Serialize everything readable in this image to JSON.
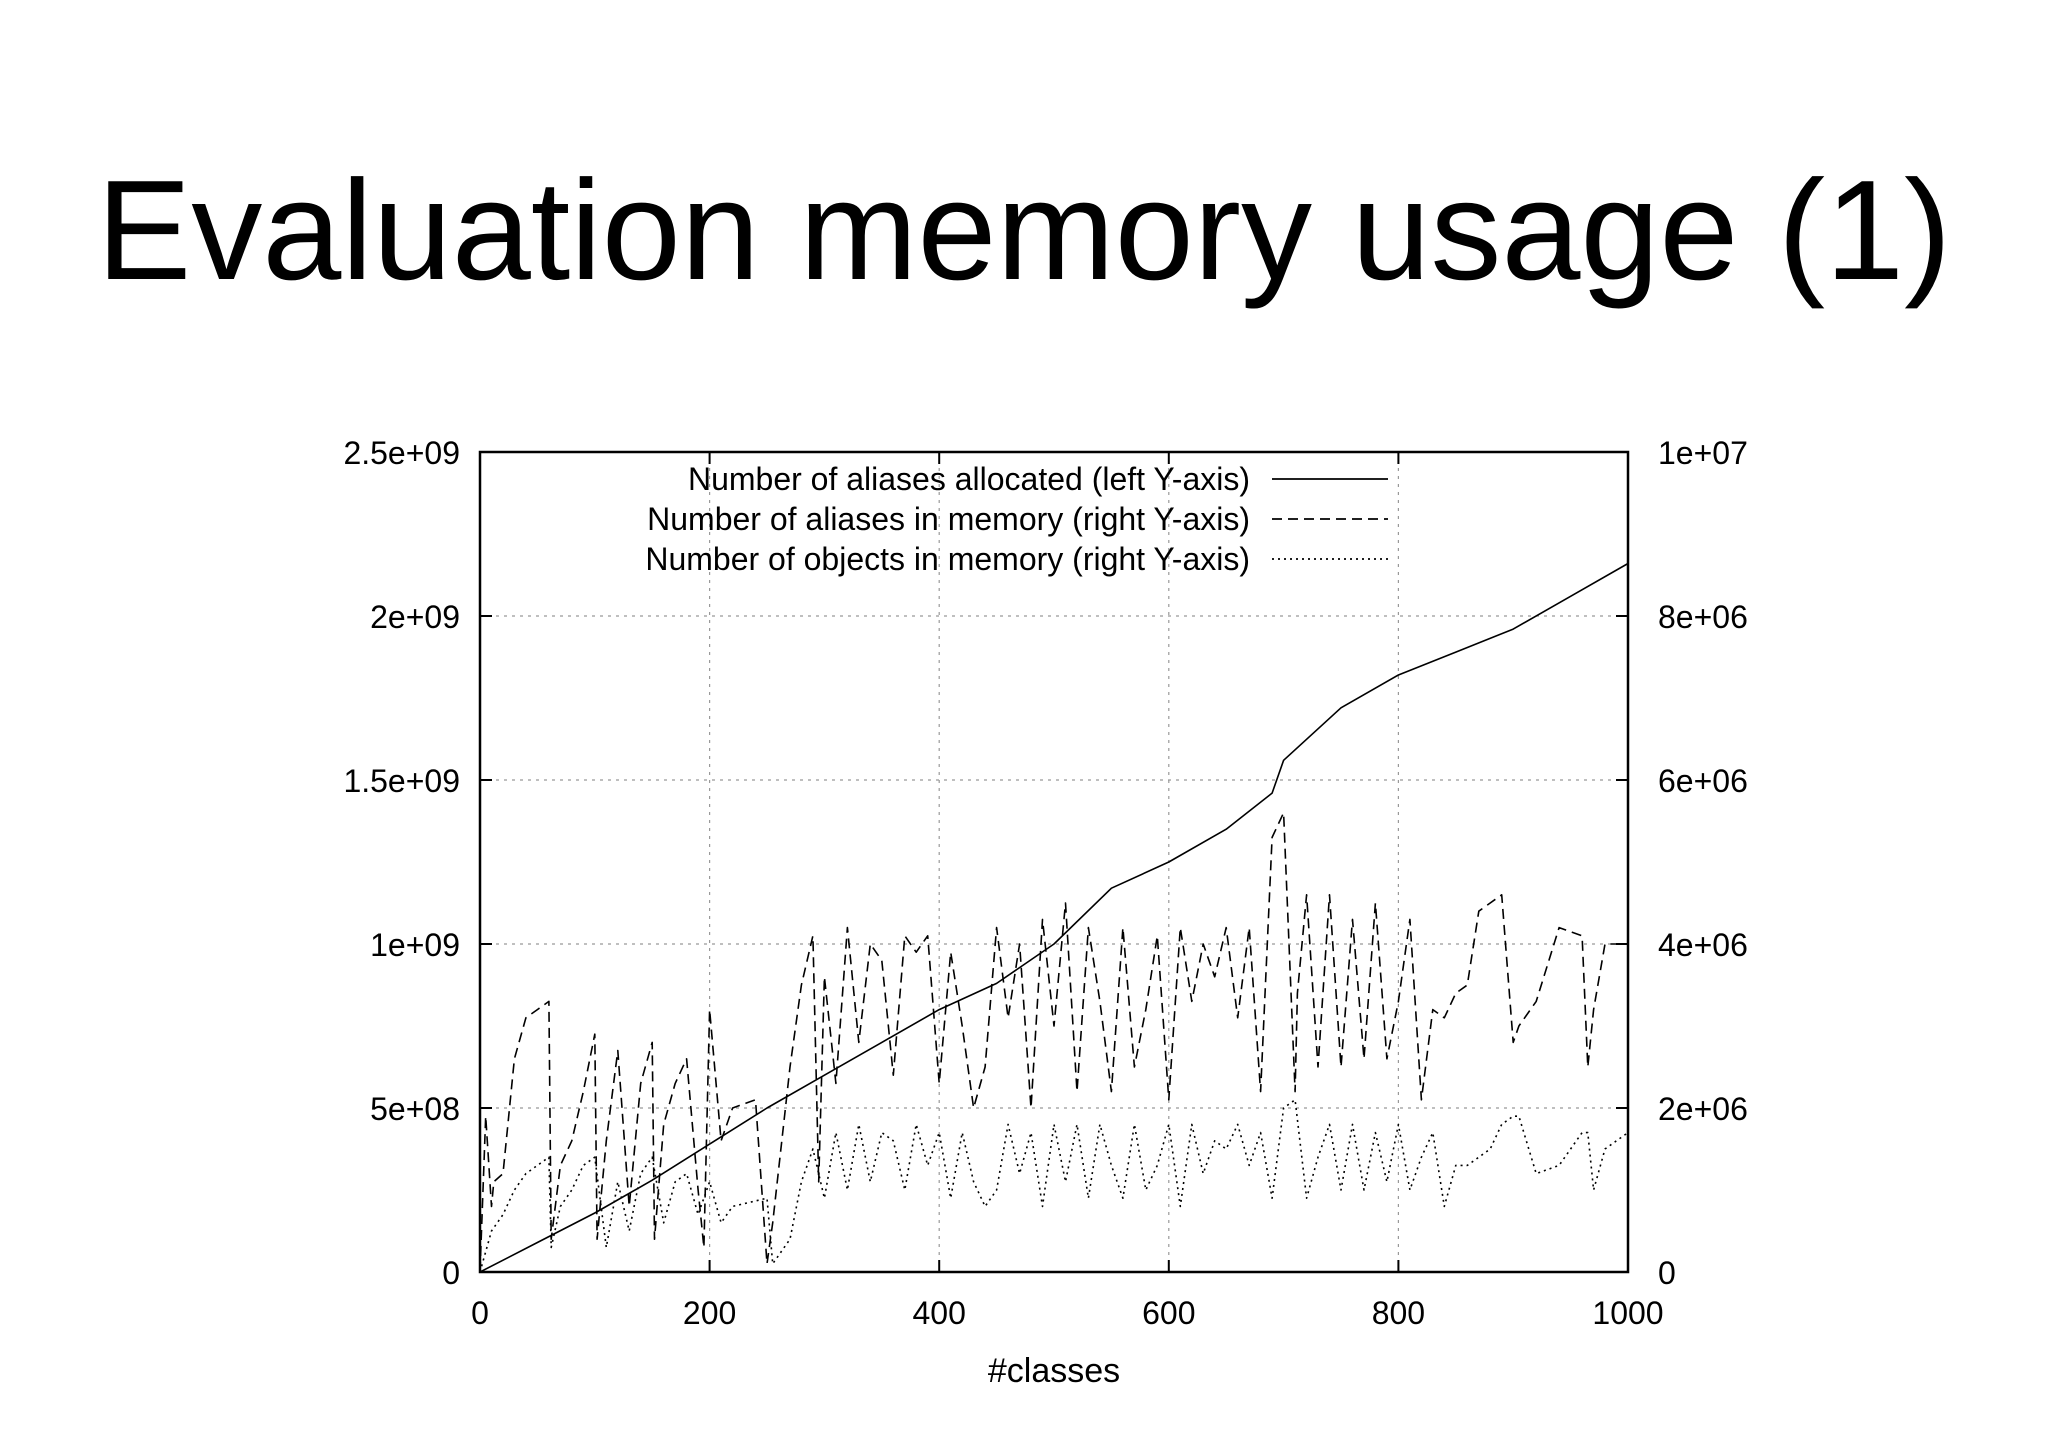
{
  "slide": {
    "title": "Evaluation memory usage (1)"
  },
  "chart_data": {
    "type": "line",
    "title": "",
    "xlabel": "#classes",
    "ylabel": "",
    "y2label": "",
    "xlim": [
      0,
      1000
    ],
    "ylim": [
      0,
      2500000000
    ],
    "y2lim": [
      0,
      10000000
    ],
    "x_ticks": [
      "0",
      "200",
      "400",
      "600",
      "800",
      "1000"
    ],
    "y_ticks": [
      "0",
      "5e+08",
      "1e+09",
      "1.5e+09",
      "2e+09",
      "2.5e+09"
    ],
    "y2_ticks": [
      "0",
      "2e+06",
      "4e+06",
      "6e+06",
      "8e+06",
      "1e+07"
    ],
    "grid": true,
    "legend_position": "top-left",
    "series": [
      {
        "name": "Number of aliases allocated (left Y-axis)",
        "axis": "left",
        "style": "solid",
        "x": [
          0,
          50,
          100,
          150,
          200,
          250,
          300,
          350,
          400,
          450,
          500,
          550,
          600,
          650,
          690,
          700,
          750,
          800,
          850,
          900,
          950,
          1000
        ],
        "y": [
          0,
          90000000,
          180000000,
          280000000,
          390000000,
          500000000,
          600000000,
          700000000,
          800000000,
          880000000,
          1000000000,
          1170000000,
          1250000000,
          1350000000,
          1460000000,
          1560000000,
          1720000000,
          1820000000,
          1890000000,
          1960000000,
          2060000000,
          2160000000
        ]
      },
      {
        "name": "Number of aliases in memory (right Y-axis)",
        "axis": "right",
        "style": "dashed",
        "x": [
          0,
          5,
          10,
          12,
          20,
          30,
          40,
          50,
          60,
          62,
          70,
          80,
          90,
          100,
          102,
          110,
          120,
          130,
          140,
          150,
          152,
          160,
          170,
          180,
          190,
          195,
          200,
          210,
          220,
          240,
          250,
          255,
          270,
          280,
          290,
          295,
          300,
          310,
          320,
          330,
          340,
          350,
          360,
          370,
          380,
          390,
          400,
          410,
          420,
          430,
          440,
          450,
          460,
          470,
          480,
          490,
          500,
          510,
          520,
          530,
          540,
          550,
          560,
          570,
          580,
          590,
          600,
          610,
          620,
          630,
          640,
          650,
          660,
          670,
          680,
          690,
          700,
          710,
          712,
          720,
          730,
          740,
          750,
          760,
          770,
          780,
          790,
          800,
          810,
          820,
          830,
          840,
          850,
          860,
          870,
          880,
          890,
          900,
          905,
          920,
          940,
          960,
          965,
          970,
          980,
          1000
        ],
        "y": [
          0,
          1900000,
          800000,
          1100000,
          1200000,
          2600000,
          3100000,
          3200000,
          3300000,
          400000,
          1300000,
          1600000,
          2200000,
          2900000,
          400000,
          1600000,
          2700000,
          800000,
          2300000,
          2800000,
          400000,
          1800000,
          2300000,
          2600000,
          1000000,
          300000,
          3200000,
          1600000,
          2000000,
          2100000,
          100000,
          600000,
          2500000,
          3500000,
          4100000,
          1100000,
          3600000,
          2300000,
          4200000,
          2800000,
          4000000,
          3800000,
          2400000,
          4100000,
          3900000,
          4100000,
          2300000,
          3900000,
          3000000,
          2000000,
          2500000,
          4200000,
          3100000,
          4000000,
          2000000,
          4300000,
          3000000,
          4500000,
          2200000,
          4200000,
          3300000,
          2200000,
          4200000,
          2500000,
          3200000,
          4100000,
          2100000,
          4200000,
          3300000,
          4000000,
          3600000,
          4200000,
          3100000,
          4200000,
          2200000,
          5300000,
          5600000,
          2200000,
          3400000,
          4600000,
          2500000,
          4600000,
          2500000,
          4300000,
          2600000,
          4500000,
          2600000,
          3300000,
          4300000,
          2100000,
          3200000,
          3100000,
          3400000,
          3500000,
          4400000,
          4500000,
          4600000,
          2800000,
          3000000,
          3300000,
          4200000,
          4100000,
          2500000,
          3200000,
          4000000,
          4000000
        ]
      },
      {
        "name": "Number of objects in memory (right Y-axis)",
        "axis": "right",
        "style": "dotted",
        "x": [
          0,
          10,
          20,
          30,
          40,
          50,
          60,
          62,
          70,
          80,
          90,
          100,
          110,
          120,
          130,
          140,
          150,
          160,
          170,
          180,
          190,
          200,
          210,
          220,
          250,
          255,
          270,
          280,
          290,
          300,
          310,
          320,
          330,
          340,
          350,
          360,
          370,
          380,
          390,
          400,
          410,
          420,
          430,
          440,
          450,
          460,
          470,
          480,
          490,
          500,
          510,
          520,
          530,
          540,
          550,
          560,
          570,
          580,
          590,
          600,
          610,
          620,
          630,
          640,
          650,
          660,
          670,
          680,
          690,
          700,
          710,
          720,
          730,
          740,
          750,
          760,
          770,
          780,
          790,
          800,
          810,
          820,
          830,
          840,
          850,
          860,
          870,
          880,
          890,
          900,
          905,
          920,
          940,
          960,
          965,
          970,
          980,
          1000
        ],
        "y": [
          0,
          500000,
          700000,
          1000000,
          1200000,
          1300000,
          1400000,
          300000,
          800000,
          1000000,
          1300000,
          1400000,
          300000,
          1100000,
          500000,
          1200000,
          1400000,
          600000,
          1100000,
          1200000,
          700000,
          1100000,
          600000,
          800000,
          900000,
          100000,
          400000,
          1100000,
          1500000,
          900000,
          1700000,
          1000000,
          1800000,
          1100000,
          1700000,
          1600000,
          1000000,
          1800000,
          1300000,
          1700000,
          900000,
          1700000,
          1100000,
          800000,
          1000000,
          1800000,
          1200000,
          1700000,
          800000,
          1800000,
          1100000,
          1800000,
          900000,
          1800000,
          1300000,
          900000,
          1800000,
          1000000,
          1300000,
          1800000,
          800000,
          1800000,
          1200000,
          1600000,
          1500000,
          1800000,
          1300000,
          1700000,
          900000,
          2000000,
          2100000,
          900000,
          1400000,
          1800000,
          1000000,
          1800000,
          1000000,
          1700000,
          1100000,
          1800000,
          1000000,
          1400000,
          1700000,
          800000,
          1300000,
          1300000,
          1400000,
          1500000,
          1800000,
          1900000,
          1900000,
          1200000,
          1300000,
          1700000,
          1700000,
          1000000,
          1500000,
          1700000
        ]
      }
    ]
  }
}
